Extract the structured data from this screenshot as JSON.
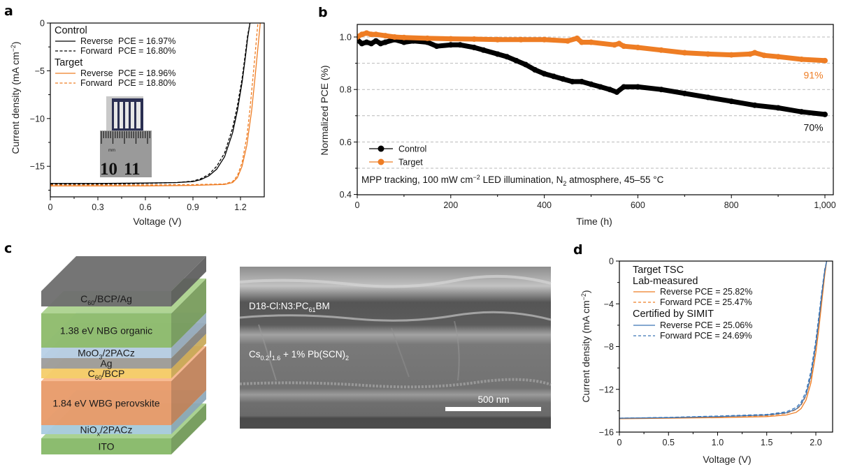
{
  "panels": {
    "a": {
      "letter": "a"
    },
    "b": {
      "letter": "b"
    },
    "c": {
      "letter": "c"
    },
    "d": {
      "letter": "d"
    }
  },
  "chart_data": [
    {
      "id": "a",
      "type": "line",
      "title": "",
      "xlabel": "Voltage (V)",
      "ylabel": "Current density (mA cm⁻²)",
      "xlim": [
        0,
        1.35
      ],
      "ylim": [
        -18.2,
        0
      ],
      "xticks": [
        0,
        0.3,
        0.6,
        0.9,
        1.2
      ],
      "xtick_labels": [
        "0",
        "0.3",
        "0.6",
        "0.9",
        "1.2"
      ],
      "yticks": [
        0,
        -5,
        -10,
        -15
      ],
      "ytick_labels": [
        "0",
        "−5",
        "−10",
        "−15"
      ],
      "legend": {
        "position": "top-left",
        "groups": [
          {
            "title": "Control",
            "color": "#000000",
            "entries": [
              {
                "scan": "Reverse",
                "label": "PCE = 16.97%",
                "dash": "solid"
              },
              {
                "scan": "Forward",
                "label": "PCE = 16.80%",
                "dash": "dashed"
              }
            ]
          },
          {
            "title": "Target",
            "color": "#ee7d24",
            "entries": [
              {
                "scan": "Reverse",
                "label": "PCE = 18.96%",
                "dash": "solid"
              },
              {
                "scan": "Forward",
                "label": "PCE = 18.80%",
                "dash": "dashed"
              }
            ]
          }
        ]
      },
      "series": [
        {
          "name": "Control Reverse",
          "color": "#000000",
          "dash": "solid",
          "x": [
            0,
            0.3,
            0.6,
            0.8,
            0.9,
            0.95,
            1.0,
            1.05,
            1.1,
            1.15,
            1.18,
            1.21,
            1.23,
            1.245,
            1.26
          ],
          "y": [
            -16.8,
            -16.8,
            -16.75,
            -16.7,
            -16.6,
            -16.4,
            -16.0,
            -15.3,
            -14.0,
            -11.5,
            -9.2,
            -6.2,
            -3.7,
            -1.6,
            0
          ]
        },
        {
          "name": "Control Forward",
          "color": "#000000",
          "dash": "dashed",
          "x": [
            0,
            0.3,
            0.6,
            0.8,
            0.9,
            0.95,
            1.0,
            1.05,
            1.1,
            1.15,
            1.18,
            1.21,
            1.23,
            1.245,
            1.26
          ],
          "y": [
            -16.9,
            -16.88,
            -16.8,
            -16.7,
            -16.55,
            -16.3,
            -15.85,
            -15.0,
            -13.6,
            -11.0,
            -8.7,
            -5.8,
            -3.3,
            -1.3,
            0
          ]
        },
        {
          "name": "Target Reverse",
          "color": "#ee7d24",
          "dash": "solid",
          "x": [
            0,
            0.3,
            0.6,
            0.9,
            1.1,
            1.15,
            1.18,
            1.21,
            1.24,
            1.27,
            1.29,
            1.31,
            1.325
          ],
          "y": [
            -17.05,
            -17.05,
            -17.05,
            -17.0,
            -16.9,
            -16.7,
            -16.2,
            -15.0,
            -12.8,
            -9.2,
            -6.0,
            -2.6,
            0
          ]
        },
        {
          "name": "Target Forward",
          "color": "#ee7d24",
          "dash": "dashed",
          "x": [
            0,
            0.3,
            0.6,
            0.9,
            1.1,
            1.15,
            1.18,
            1.21,
            1.24,
            1.26,
            1.28,
            1.295,
            1.31
          ],
          "y": [
            -16.95,
            -16.95,
            -16.95,
            -16.92,
            -16.85,
            -16.6,
            -16.0,
            -14.6,
            -11.9,
            -9.0,
            -5.5,
            -2.8,
            0
          ]
        }
      ],
      "inset": "photo of device on ruler (mm scale: 10, 11)",
      "inset_text": {
        "unit": "mm",
        "n1": "10",
        "n2": "11"
      }
    },
    {
      "id": "b",
      "type": "scatter",
      "title": "",
      "xlabel": "Time (h)",
      "ylabel": "Normalized PCE (%)",
      "xlim": [
        0,
        1030
      ],
      "ylim": [
        0.4,
        1.05
      ],
      "xticks": [
        0,
        200,
        400,
        600,
        800,
        1000
      ],
      "xtick_labels": [
        "0",
        "200",
        "400",
        "600",
        "800",
        "1,000"
      ],
      "yticks": [
        0.4,
        0.6,
        0.8,
        1.0
      ],
      "ytick_labels": [
        "0.4",
        "0.6",
        "0.8",
        "1.0"
      ],
      "grid_y": [
        0.5,
        0.6,
        0.7,
        0.8,
        0.9,
        1.0
      ],
      "grid": "horizontal dashed",
      "legend": {
        "position": "bottom-left",
        "entries": [
          {
            "label": "Control",
            "color": "#000000"
          },
          {
            "label": "Target",
            "color": "#ee7d24"
          }
        ]
      },
      "annotation": "MPP tracking, 100 mW cm⁻² LED illumination, N₂ atmosphere, 45–55 °C",
      "end_labels": [
        {
          "text": "91%",
          "color": "#ee7d24",
          "x": 950,
          "y": 0.855
        },
        {
          "text": "70%",
          "color": "#000000",
          "x": 950,
          "y": 0.655
        }
      ],
      "series": [
        {
          "name": "Control",
          "color": "#000000",
          "x": [
            0,
            10,
            20,
            30,
            40,
            50,
            60,
            80,
            100,
            120,
            150,
            170,
            200,
            220,
            250,
            270,
            300,
            320,
            340,
            360,
            380,
            400,
            420,
            440,
            460,
            480,
            500,
            520,
            540,
            555,
            570,
            600,
            650,
            700,
            750,
            800,
            850,
            900,
            950,
            1000
          ],
          "y": [
            0.99,
            0.975,
            0.98,
            0.975,
            0.985,
            0.975,
            0.98,
            0.99,
            0.98,
            0.985,
            0.98,
            0.965,
            0.97,
            0.97,
            0.96,
            0.95,
            0.935,
            0.925,
            0.91,
            0.895,
            0.875,
            0.86,
            0.85,
            0.84,
            0.83,
            0.83,
            0.82,
            0.81,
            0.8,
            0.79,
            0.81,
            0.81,
            0.8,
            0.785,
            0.77,
            0.755,
            0.74,
            0.73,
            0.715,
            0.705
          ]
        },
        {
          "name": "Target",
          "color": "#ee7d24",
          "x": [
            0,
            10,
            20,
            30,
            40,
            60,
            80,
            100,
            150,
            200,
            250,
            300,
            350,
            400,
            450,
            470,
            480,
            500,
            550,
            560,
            570,
            600,
            650,
            700,
            750,
            800,
            840,
            850,
            870,
            900,
            950,
            1000
          ],
          "y": [
            1.0,
            1.01,
            1.015,
            1.01,
            1.01,
            1.005,
            1.0,
            0.998,
            0.995,
            0.993,
            0.992,
            0.99,
            0.99,
            0.99,
            0.985,
            0.995,
            0.98,
            0.98,
            0.97,
            0.975,
            0.965,
            0.96,
            0.95,
            0.94,
            0.935,
            0.932,
            0.935,
            0.94,
            0.93,
            0.925,
            0.915,
            0.91
          ]
        }
      ]
    },
    {
      "id": "d",
      "type": "line",
      "title": "",
      "xlabel": "Voltage (V)",
      "ylabel": "Current density (mA cm⁻²)",
      "xlim": [
        0,
        2.17
      ],
      "ylim": [
        -16,
        0
      ],
      "xticks": [
        0,
        0.5,
        1.0,
        1.5,
        2.0
      ],
      "xtick_labels": [
        "0",
        "0.5",
        "1.0",
        "1.5",
        "2.0"
      ],
      "yticks": [
        0,
        -4,
        -8,
        -12,
        -16
      ],
      "ytick_labels": [
        "0",
        "−4",
        "−8",
        "−12",
        "−16"
      ],
      "legend": {
        "position": "top-left",
        "groups": [
          {
            "title": "Target TSC",
            "subtitle": "Lab-measured",
            "color": "#ee7d24",
            "entries": [
              {
                "label": "Reverse PCE = 25.82%",
                "dash": "solid"
              },
              {
                "label": "Forward PCE = 25.47%",
                "dash": "dashed"
              }
            ]
          },
          {
            "title": "Certified by SIMIT",
            "color": "#3b75b5",
            "entries": [
              {
                "label": "Reverse PCE = 25.06%",
                "dash": "solid"
              },
              {
                "label": "Forward PCE = 24.69%",
                "dash": "dashed"
              }
            ]
          }
        ]
      },
      "series": [
        {
          "name": "Lab Reverse",
          "color": "#ee7d24",
          "dash": "solid",
          "x": [
            0,
            0.5,
            1.0,
            1.5,
            1.7,
            1.8,
            1.85,
            1.9,
            1.95,
            2.0,
            2.03,
            2.06,
            2.09,
            2.11
          ],
          "y": [
            -14.75,
            -14.7,
            -14.65,
            -14.55,
            -14.4,
            -14.15,
            -13.8,
            -13.0,
            -11.4,
            -8.6,
            -6.4,
            -3.9,
            -1.4,
            0
          ]
        },
        {
          "name": "Lab Forward",
          "color": "#ee7d24",
          "dash": "dashed",
          "x": [
            0,
            0.5,
            1.0,
            1.5,
            1.7,
            1.8,
            1.85,
            1.9,
            1.95,
            2.0,
            2.03,
            2.06,
            2.09,
            2.11
          ],
          "y": [
            -14.7,
            -14.65,
            -14.55,
            -14.45,
            -14.25,
            -13.9,
            -13.5,
            -12.6,
            -10.9,
            -8.0,
            -5.8,
            -3.3,
            -1.0,
            0
          ]
        },
        {
          "name": "SIMIT Reverse",
          "color": "#3b75b5",
          "dash": "solid",
          "x": [
            0,
            0.5,
            1.0,
            1.5,
            1.7,
            1.8,
            1.85,
            1.9,
            1.95,
            2.0,
            2.03,
            2.06,
            2.09,
            2.11
          ],
          "y": [
            -14.7,
            -14.65,
            -14.55,
            -14.4,
            -14.2,
            -13.85,
            -13.4,
            -12.5,
            -10.7,
            -7.8,
            -5.6,
            -3.2,
            -1.0,
            0
          ]
        },
        {
          "name": "SIMIT Forward",
          "color": "#3b75b5",
          "dash": "dashed",
          "x": [
            0,
            0.5,
            1.0,
            1.5,
            1.7,
            1.8,
            1.85,
            1.9,
            1.95,
            2.0,
            2.03,
            2.06,
            2.09,
            2.11
          ],
          "y": [
            -14.7,
            -14.62,
            -14.5,
            -14.35,
            -14.1,
            -13.7,
            -13.2,
            -12.2,
            -10.3,
            -7.4,
            -5.2,
            -2.9,
            -0.8,
            0
          ]
        }
      ]
    }
  ],
  "device_stack": {
    "layers": [
      {
        "label": "C₆₀/BCP/Ag",
        "main": "C",
        "sub": "60",
        "rest": "/BCP/Ag",
        "color": "#6e6e6e"
      },
      {
        "label": "1.38 eV NBG organic",
        "color": "#8dbb6a"
      },
      {
        "label": "MoO₃/2PACz",
        "main": "MoO",
        "sub": "3",
        "rest": "/2PACz",
        "color": "#b7d0e6"
      },
      {
        "label": "Ag",
        "color": "#9c9c9c"
      },
      {
        "label": "C₆₀/BCP",
        "main": "C",
        "sub": "60",
        "rest": "/BCP",
        "color": "#f4cd6a"
      },
      {
        "label": "1.84 eV WBG perovskite",
        "color": "#e89a68"
      },
      {
        "label": "NiOₓ/2PACz",
        "main": "NiO",
        "sub": "x",
        "rest": "/2PACz",
        "color": "#a9cbe0"
      },
      {
        "label": "ITO",
        "color": "#86b867"
      }
    ]
  },
  "sem_image": {
    "label_top": {
      "a": "D18-Cl:N3:PC",
      "sub": "61",
      "b": "BM"
    },
    "label_mid": {
      "a": "Cs",
      "s1": "0.2",
      "b": "I",
      "s2": "1.6",
      "c": " + 1% Pb(SCN)",
      "s3": "2"
    },
    "scale_bar": "500 nm"
  }
}
